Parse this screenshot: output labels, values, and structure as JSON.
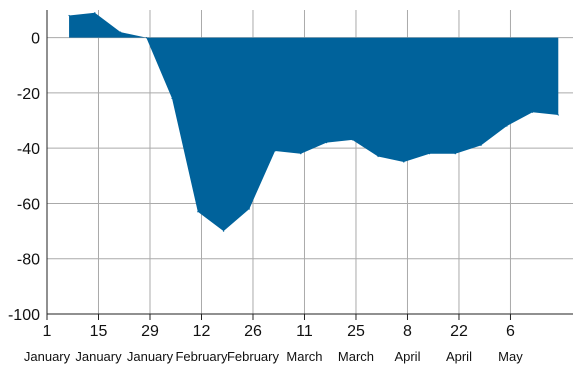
{
  "chart_data": {
    "type": "area",
    "title": "",
    "xlabel": "",
    "ylabel": "",
    "ylim": [
      -100,
      10
    ],
    "xlim": [
      "2020-01-01",
      "2020-05-23"
    ],
    "yticks": [
      0,
      -20,
      -40,
      -60,
      -80,
      -100
    ],
    "ytick_labels": [
      "0",
      "-20",
      "-40",
      "-60",
      "-80",
      "-100"
    ],
    "xticks": [
      {
        "date": "2020-01-01",
        "day": "1",
        "month": "January"
      },
      {
        "date": "2020-01-15",
        "day": "15",
        "month": "January"
      },
      {
        "date": "2020-01-29",
        "day": "29",
        "month": "January"
      },
      {
        "date": "2020-02-12",
        "day": "12",
        "month": "February"
      },
      {
        "date": "2020-02-26",
        "day": "26",
        "month": "February"
      },
      {
        "date": "2020-03-11",
        "day": "11",
        "month": "March"
      },
      {
        "date": "2020-03-25",
        "day": "25",
        "month": "March"
      },
      {
        "date": "2020-04-08",
        "day": "8",
        "month": "April"
      },
      {
        "date": "2020-04-22",
        "day": "22",
        "month": "April"
      },
      {
        "date": "2020-05-06",
        "day": "6",
        "month": "May"
      }
    ],
    "grid": true,
    "series": [
      {
        "color": "#00629b",
        "points": [
          {
            "x": "2020-01-07",
            "y": 8
          },
          {
            "x": "2020-01-14",
            "y": 9
          },
          {
            "x": "2020-01-21",
            "y": 2
          },
          {
            "x": "2020-01-28",
            "y": 0
          },
          {
            "x": "2020-02-04",
            "y": -22
          },
          {
            "x": "2020-02-11",
            "y": -63
          },
          {
            "x": "2020-02-18",
            "y": -70
          },
          {
            "x": "2020-02-25",
            "y": -62
          },
          {
            "x": "2020-03-03",
            "y": -41
          },
          {
            "x": "2020-03-10",
            "y": -42
          },
          {
            "x": "2020-03-17",
            "y": -38
          },
          {
            "x": "2020-03-24",
            "y": -37
          },
          {
            "x": "2020-03-31",
            "y": -43
          },
          {
            "x": "2020-04-07",
            "y": -45
          },
          {
            "x": "2020-04-14",
            "y": -42
          },
          {
            "x": "2020-04-21",
            "y": -42
          },
          {
            "x": "2020-04-28",
            "y": -39
          },
          {
            "x": "2020-05-05",
            "y": -32
          },
          {
            "x": "2020-05-12",
            "y": -27
          },
          {
            "x": "2020-05-19",
            "y": -28
          }
        ]
      }
    ]
  }
}
